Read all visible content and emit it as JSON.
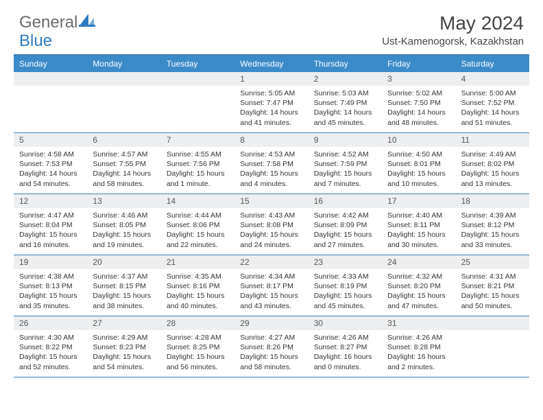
{
  "logo": {
    "text1": "General",
    "text2": "Blue"
  },
  "title": "May 2024",
  "location": "Ust-Kamenogorsk, Kazakhstan",
  "colors": {
    "header_bg": "#3b8bc9",
    "border": "#3b7fb8",
    "daynum_bg": "#eceef0",
    "logo_gray": "#6a6a6a",
    "logo_blue": "#2e7bbf"
  },
  "dayNames": [
    "Sunday",
    "Monday",
    "Tuesday",
    "Wednesday",
    "Thursday",
    "Friday",
    "Saturday"
  ],
  "weeks": [
    [
      null,
      null,
      null,
      {
        "n": "1",
        "sr": "5:05 AM",
        "ss": "7:47 PM",
        "dl": "14 hours and 41 minutes."
      },
      {
        "n": "2",
        "sr": "5:03 AM",
        "ss": "7:49 PM",
        "dl": "14 hours and 45 minutes."
      },
      {
        "n": "3",
        "sr": "5:02 AM",
        "ss": "7:50 PM",
        "dl": "14 hours and 48 minutes."
      },
      {
        "n": "4",
        "sr": "5:00 AM",
        "ss": "7:52 PM",
        "dl": "14 hours and 51 minutes."
      }
    ],
    [
      {
        "n": "5",
        "sr": "4:58 AM",
        "ss": "7:53 PM",
        "dl": "14 hours and 54 minutes."
      },
      {
        "n": "6",
        "sr": "4:57 AM",
        "ss": "7:55 PM",
        "dl": "14 hours and 58 minutes."
      },
      {
        "n": "7",
        "sr": "4:55 AM",
        "ss": "7:56 PM",
        "dl": "15 hours and 1 minute."
      },
      {
        "n": "8",
        "sr": "4:53 AM",
        "ss": "7:58 PM",
        "dl": "15 hours and 4 minutes."
      },
      {
        "n": "9",
        "sr": "4:52 AM",
        "ss": "7:59 PM",
        "dl": "15 hours and 7 minutes."
      },
      {
        "n": "10",
        "sr": "4:50 AM",
        "ss": "8:01 PM",
        "dl": "15 hours and 10 minutes."
      },
      {
        "n": "11",
        "sr": "4:49 AM",
        "ss": "8:02 PM",
        "dl": "15 hours and 13 minutes."
      }
    ],
    [
      {
        "n": "12",
        "sr": "4:47 AM",
        "ss": "8:04 PM",
        "dl": "15 hours and 16 minutes."
      },
      {
        "n": "13",
        "sr": "4:46 AM",
        "ss": "8:05 PM",
        "dl": "15 hours and 19 minutes."
      },
      {
        "n": "14",
        "sr": "4:44 AM",
        "ss": "8:06 PM",
        "dl": "15 hours and 22 minutes."
      },
      {
        "n": "15",
        "sr": "4:43 AM",
        "ss": "8:08 PM",
        "dl": "15 hours and 24 minutes."
      },
      {
        "n": "16",
        "sr": "4:42 AM",
        "ss": "8:09 PM",
        "dl": "15 hours and 27 minutes."
      },
      {
        "n": "17",
        "sr": "4:40 AM",
        "ss": "8:11 PM",
        "dl": "15 hours and 30 minutes."
      },
      {
        "n": "18",
        "sr": "4:39 AM",
        "ss": "8:12 PM",
        "dl": "15 hours and 33 minutes."
      }
    ],
    [
      {
        "n": "19",
        "sr": "4:38 AM",
        "ss": "8:13 PM",
        "dl": "15 hours and 35 minutes."
      },
      {
        "n": "20",
        "sr": "4:37 AM",
        "ss": "8:15 PM",
        "dl": "15 hours and 38 minutes."
      },
      {
        "n": "21",
        "sr": "4:35 AM",
        "ss": "8:16 PM",
        "dl": "15 hours and 40 minutes."
      },
      {
        "n": "22",
        "sr": "4:34 AM",
        "ss": "8:17 PM",
        "dl": "15 hours and 43 minutes."
      },
      {
        "n": "23",
        "sr": "4:33 AM",
        "ss": "8:19 PM",
        "dl": "15 hours and 45 minutes."
      },
      {
        "n": "24",
        "sr": "4:32 AM",
        "ss": "8:20 PM",
        "dl": "15 hours and 47 minutes."
      },
      {
        "n": "25",
        "sr": "4:31 AM",
        "ss": "8:21 PM",
        "dl": "15 hours and 50 minutes."
      }
    ],
    [
      {
        "n": "26",
        "sr": "4:30 AM",
        "ss": "8:22 PM",
        "dl": "15 hours and 52 minutes."
      },
      {
        "n": "27",
        "sr": "4:29 AM",
        "ss": "8:23 PM",
        "dl": "15 hours and 54 minutes."
      },
      {
        "n": "28",
        "sr": "4:28 AM",
        "ss": "8:25 PM",
        "dl": "15 hours and 56 minutes."
      },
      {
        "n": "29",
        "sr": "4:27 AM",
        "ss": "8:26 PM",
        "dl": "15 hours and 58 minutes."
      },
      {
        "n": "30",
        "sr": "4:26 AM",
        "ss": "8:27 PM",
        "dl": "16 hours and 0 minutes."
      },
      {
        "n": "31",
        "sr": "4:26 AM",
        "ss": "8:28 PM",
        "dl": "16 hours and 2 minutes."
      },
      null
    ]
  ],
  "labels": {
    "sunrise": "Sunrise:",
    "sunset": "Sunset:",
    "daylight": "Daylight:"
  }
}
